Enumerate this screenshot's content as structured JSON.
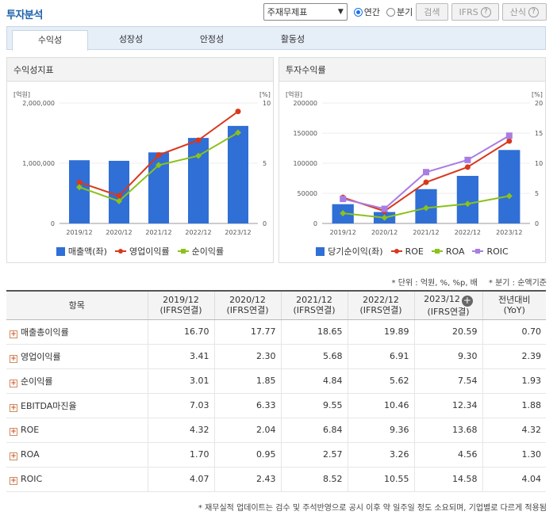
{
  "header": {
    "title": "투자분석",
    "statement_select": "주재무제표",
    "radio_annual": "연간",
    "radio_quarter": "분기",
    "search_btn": "검색",
    "ifrs_btn": "IFRS",
    "formula_btn": "산식"
  },
  "tabs": [
    "수익성",
    "성장성",
    "안정성",
    "활동성"
  ],
  "left_panel": {
    "title": "수익성지표"
  },
  "right_panel": {
    "title": "투자수익률"
  },
  "colors": {
    "bar": "#2f6fd6",
    "red": "#d9381e",
    "green": "#8bc21a",
    "purple": "#a97de3"
  },
  "chart_data": [
    {
      "type": "bar",
      "title": "수익성지표",
      "categories": [
        "2019/12",
        "2020/12",
        "2021/12",
        "2022/12",
        "2023/12"
      ],
      "left_unit": "[억원]",
      "right_unit": "[%]",
      "left_ticks": [
        "0",
        "1,000,000",
        "2,000,000"
      ],
      "right_ticks": [
        "0",
        "5",
        "10"
      ],
      "ylim_left": [
        0,
        2000000
      ],
      "ylim_right": [
        0,
        10
      ],
      "series": [
        {
          "name": "매출액(좌)",
          "kind": "bar",
          "axis": "left",
          "values": [
            1050000,
            1040000,
            1180000,
            1420000,
            1620000
          ]
        },
        {
          "name": "영업이익률",
          "kind": "line",
          "axis": "right",
          "values": [
            3.41,
            2.3,
            5.68,
            6.91,
            9.3
          ]
        },
        {
          "name": "순이익률",
          "kind": "line",
          "axis": "right",
          "values": [
            3.01,
            1.85,
            4.84,
            5.62,
            7.54
          ]
        }
      ]
    },
    {
      "type": "bar",
      "title": "투자수익률",
      "categories": [
        "2019/12",
        "2020/12",
        "2021/12",
        "2022/12",
        "2023/12"
      ],
      "left_unit": "[억원]",
      "right_unit": "[%]",
      "left_ticks": [
        "0",
        "50000",
        "100000",
        "150000",
        "200000"
      ],
      "right_ticks": [
        "0",
        "5",
        "10",
        "15",
        "20"
      ],
      "ylim_left": [
        0,
        200000
      ],
      "ylim_right": [
        0,
        20
      ],
      "series": [
        {
          "name": "당기순이익(좌)",
          "kind": "bar",
          "axis": "left",
          "values": [
            32000,
            19000,
            57000,
            79000,
            122000
          ]
        },
        {
          "name": "ROE",
          "kind": "line",
          "axis": "right",
          "values": [
            4.32,
            2.04,
            6.84,
            9.36,
            13.68
          ]
        },
        {
          "name": "ROA",
          "kind": "line",
          "axis": "right",
          "values": [
            1.7,
            0.95,
            2.57,
            3.26,
            4.56
          ]
        },
        {
          "name": "ROIC",
          "kind": "line",
          "axis": "right",
          "values": [
            4.07,
            2.43,
            8.52,
            10.55,
            14.58
          ]
        }
      ]
    }
  ],
  "notes": {
    "unit": "* 단위 : 억원, %, %p, 배",
    "quarter": "* 분기 : 순액기준"
  },
  "table": {
    "headers": [
      "항목",
      "2019/12\n(IFRS연결)",
      "2020/12\n(IFRS연결)",
      "2021/12\n(IFRS연결)",
      "2022/12\n(IFRS연결)",
      "2023/12\n(IFRS연결)",
      "전년대비\n(YoY)"
    ],
    "rows": [
      {
        "label": "매출총이익률",
        "values": [
          "16.70",
          "17.77",
          "18.65",
          "19.89",
          "20.59",
          "0.70"
        ]
      },
      {
        "label": "영업이익률",
        "values": [
          "3.41",
          "2.30",
          "5.68",
          "6.91",
          "9.30",
          "2.39"
        ]
      },
      {
        "label": "순이익률",
        "values": [
          "3.01",
          "1.85",
          "4.84",
          "5.62",
          "7.54",
          "1.93"
        ]
      },
      {
        "label": "EBITDA마진율",
        "values": [
          "7.03",
          "6.33",
          "9.55",
          "10.46",
          "12.34",
          "1.88"
        ]
      },
      {
        "label": "ROE",
        "values": [
          "4.32",
          "2.04",
          "6.84",
          "9.36",
          "13.68",
          "4.32"
        ]
      },
      {
        "label": "ROA",
        "values": [
          "1.70",
          "0.95",
          "2.57",
          "3.26",
          "4.56",
          "1.30"
        ]
      },
      {
        "label": "ROIC",
        "values": [
          "4.07",
          "2.43",
          "8.52",
          "10.55",
          "14.58",
          "4.04"
        ]
      }
    ]
  },
  "footer": "* 재무실적 업데이트는 검수 및 주석반영으로 공시 이후 약 일주일 정도 소요되며, 기업별로 다르게 적용됨"
}
